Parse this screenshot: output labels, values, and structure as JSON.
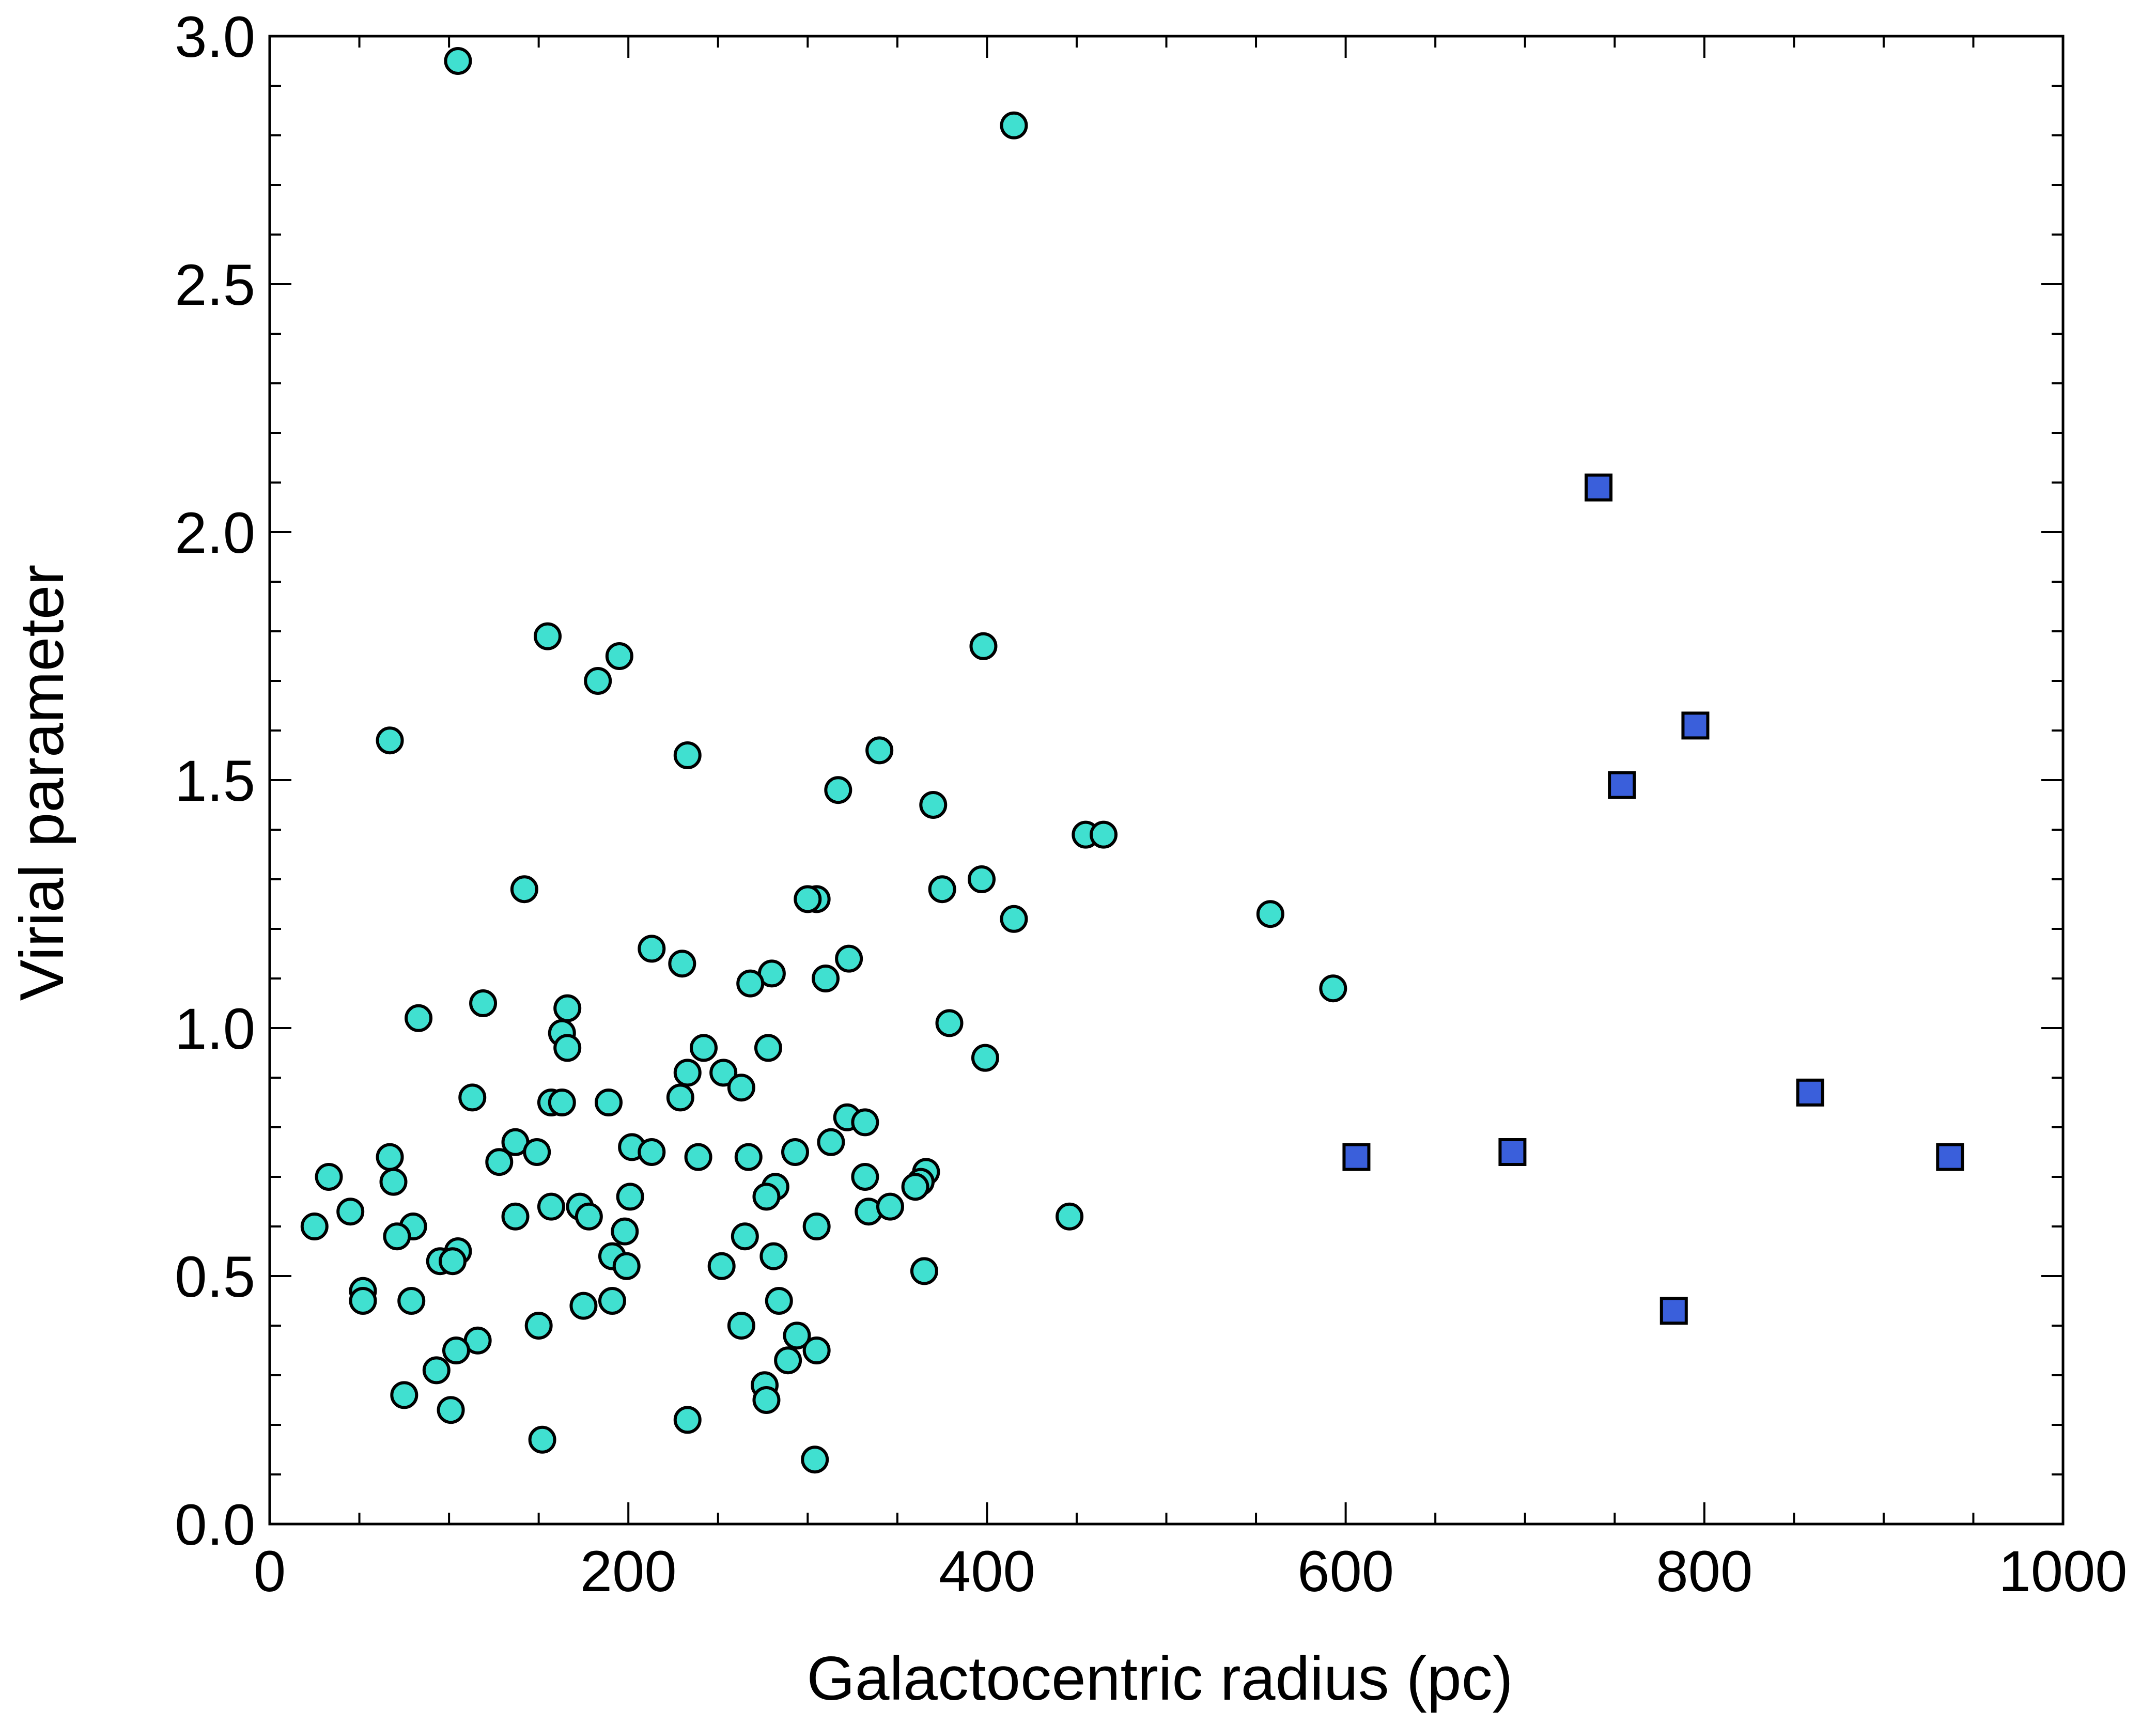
{
  "chart_data": {
    "type": "scatter",
    "title": "",
    "xlabel": "Galactocentric radius (pc)",
    "ylabel": "Virial parameter",
    "xlim": [
      0,
      1000
    ],
    "ylim": [
      0,
      3.0
    ],
    "x_ticks": [
      0,
      200,
      400,
      600,
      800,
      1000
    ],
    "x_tick_labels": [
      "0",
      "200",
      "400",
      "600",
      "800",
      "1000"
    ],
    "y_ticks": [
      0.0,
      0.5,
      1.0,
      1.5,
      2.0,
      2.5,
      3.0
    ],
    "y_tick_labels": [
      "0.0",
      "0.5",
      "1.0",
      "1.5",
      "2.0",
      "2.5",
      "3.0"
    ],
    "grid": false,
    "series": [
      {
        "name": "circles",
        "marker": "circle",
        "color": "#40E0D0",
        "points": [
          [
            105,
            2.95
          ],
          [
            415,
            2.82
          ],
          [
            155,
            1.79
          ],
          [
            195,
            1.75
          ],
          [
            183,
            1.7
          ],
          [
            398,
            1.77
          ],
          [
            67,
            1.58
          ],
          [
            233,
            1.55
          ],
          [
            340,
            1.56
          ],
          [
            317,
            1.48
          ],
          [
            370,
            1.45
          ],
          [
            455,
            1.39
          ],
          [
            465,
            1.39
          ],
          [
            142,
            1.28
          ],
          [
            397,
            1.3
          ],
          [
            375,
            1.28
          ],
          [
            305,
            1.26
          ],
          [
            300,
            1.26
          ],
          [
            415,
            1.22
          ],
          [
            558,
            1.23
          ],
          [
            213,
            1.16
          ],
          [
            230,
            1.13
          ],
          [
            323,
            1.14
          ],
          [
            280,
            1.11
          ],
          [
            268,
            1.09
          ],
          [
            310,
            1.1
          ],
          [
            593,
            1.08
          ],
          [
            119,
            1.05
          ],
          [
            166,
            1.04
          ],
          [
            83,
            1.02
          ],
          [
            163,
            0.99
          ],
          [
            379,
            1.01
          ],
          [
            166,
            0.96
          ],
          [
            242,
            0.96
          ],
          [
            278,
            0.96
          ],
          [
            399,
            0.94
          ],
          [
            233,
            0.91
          ],
          [
            253,
            0.91
          ],
          [
            263,
            0.88
          ],
          [
            113,
            0.86
          ],
          [
            229,
            0.86
          ],
          [
            157,
            0.85
          ],
          [
            163,
            0.85
          ],
          [
            189,
            0.85
          ],
          [
            322,
            0.82
          ],
          [
            332,
            0.81
          ],
          [
            313,
            0.77
          ],
          [
            137,
            0.77
          ],
          [
            149,
            0.75
          ],
          [
            202,
            0.76
          ],
          [
            213,
            0.75
          ],
          [
            239,
            0.74
          ],
          [
            267,
            0.74
          ],
          [
            293,
            0.75
          ],
          [
            67,
            0.74
          ],
          [
            128,
            0.73
          ],
          [
            33,
            0.7
          ],
          [
            332,
            0.7
          ],
          [
            366,
            0.71
          ],
          [
            69,
            0.69
          ],
          [
            363,
            0.69
          ],
          [
            360,
            0.68
          ],
          [
            282,
            0.68
          ],
          [
            277,
            0.66
          ],
          [
            201,
            0.66
          ],
          [
            157,
            0.64
          ],
          [
            173,
            0.64
          ],
          [
            178,
            0.62
          ],
          [
            45,
            0.63
          ],
          [
            137,
            0.62
          ],
          [
            334,
            0.63
          ],
          [
            346,
            0.64
          ],
          [
            25,
            0.6
          ],
          [
            80,
            0.6
          ],
          [
            305,
            0.6
          ],
          [
            198,
            0.59
          ],
          [
            265,
            0.58
          ],
          [
            71,
            0.58
          ],
          [
            446,
            0.62
          ],
          [
            281,
            0.54
          ],
          [
            191,
            0.54
          ],
          [
            105,
            0.55
          ],
          [
            95,
            0.53
          ],
          [
            102,
            0.53
          ],
          [
            199,
            0.52
          ],
          [
            252,
            0.52
          ],
          [
            365,
            0.51
          ],
          [
            52,
            0.47
          ],
          [
            52,
            0.45
          ],
          [
            79,
            0.45
          ],
          [
            175,
            0.44
          ],
          [
            191,
            0.45
          ],
          [
            284,
            0.45
          ],
          [
            150,
            0.4
          ],
          [
            263,
            0.4
          ],
          [
            294,
            0.38
          ],
          [
            116,
            0.37
          ],
          [
            104,
            0.35
          ],
          [
            305,
            0.35
          ],
          [
            289,
            0.33
          ],
          [
            93,
            0.31
          ],
          [
            276,
            0.28
          ],
          [
            75,
            0.26
          ],
          [
            277,
            0.25
          ],
          [
            101,
            0.23
          ],
          [
            233,
            0.21
          ],
          [
            152,
            0.17
          ],
          [
            304,
            0.13
          ]
        ]
      },
      {
        "name": "squares",
        "marker": "square",
        "color": "#3A5FDB",
        "points": [
          [
            741,
            2.09
          ],
          [
            795,
            1.61
          ],
          [
            754,
            1.49
          ],
          [
            859,
            0.87
          ],
          [
            606,
            0.74
          ],
          [
            693,
            0.75
          ],
          [
            937,
            0.74
          ],
          [
            783,
            0.43
          ]
        ]
      }
    ]
  }
}
